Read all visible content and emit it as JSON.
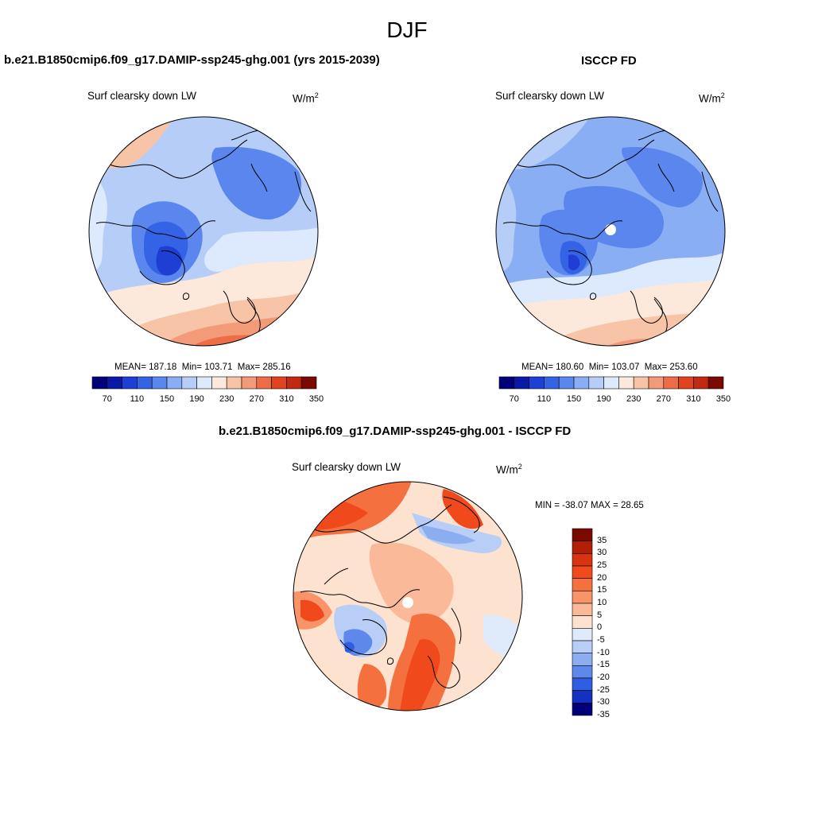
{
  "figure": {
    "season": "DJF"
  },
  "panels": [
    {
      "title": "b.e21.B1850cmip6.f09_g17.DAMIP-ssp245-ghg.001 (yrs 2015-2039)",
      "variable": "Surf clearsky down LW",
      "unit": "W/m",
      "unit_sup": "2",
      "stats": {
        "mean_label": "MEAN=",
        "mean": "187.18",
        "min_label": "Min=",
        "min": "103.71",
        "max_label": "Max=",
        "max": "285.16"
      },
      "colorbar_ticks": [
        "70",
        "110",
        "150",
        "190",
        "230",
        "270",
        "310",
        "350"
      ]
    },
    {
      "title": "ISCCP FD",
      "variable": "Surf clearsky down LW",
      "unit": "W/m",
      "unit_sup": "2",
      "stats": {
        "mean_label": "MEAN=",
        "mean": "180.60",
        "min_label": "Min=",
        "min": "103.07",
        "max_label": "Max=",
        "max": "253.60"
      },
      "colorbar_ticks": [
        "70",
        "110",
        "150",
        "190",
        "230",
        "270",
        "310",
        "350"
      ]
    },
    {
      "title": "b.e21.B1850cmip6.f09_g17.DAMIP-ssp245-ghg.001 - ISCCP FD",
      "variable": "Surf clearsky down LW",
      "unit": "W/m",
      "unit_sup": "2",
      "minmax_text": "MIN = -38.07 MAX =  28.65",
      "colorbar_ticks": [
        "35",
        "30",
        "25",
        "20",
        "15",
        "10",
        "5",
        "0",
        "-5",
        "-10",
        "-15",
        "-20",
        "-25",
        "-30",
        "-35"
      ]
    }
  ],
  "colors": {
    "abs_scale": [
      "#00007a",
      "#0a1aa8",
      "#1f3fd4",
      "#3563e6",
      "#5a86ee",
      "#8aaef4",
      "#b6cdf8",
      "#dde9fc",
      "#fde9dc",
      "#f8c4a8",
      "#f39a78",
      "#ee6d48",
      "#e0431f",
      "#bf2a10",
      "#7a0a00"
    ],
    "diff_scale": [
      "#7a0a00",
      "#b21e08",
      "#d8340f",
      "#f04a1c",
      "#f5703f",
      "#f89468",
      "#fab998",
      "#fde2cf",
      "#dfebfb",
      "#b8cef6",
      "#8caef0",
      "#5e88ea",
      "#2f5ee3",
      "#1431c0",
      "#00007a"
    ],
    "coastline": "#000000"
  }
}
